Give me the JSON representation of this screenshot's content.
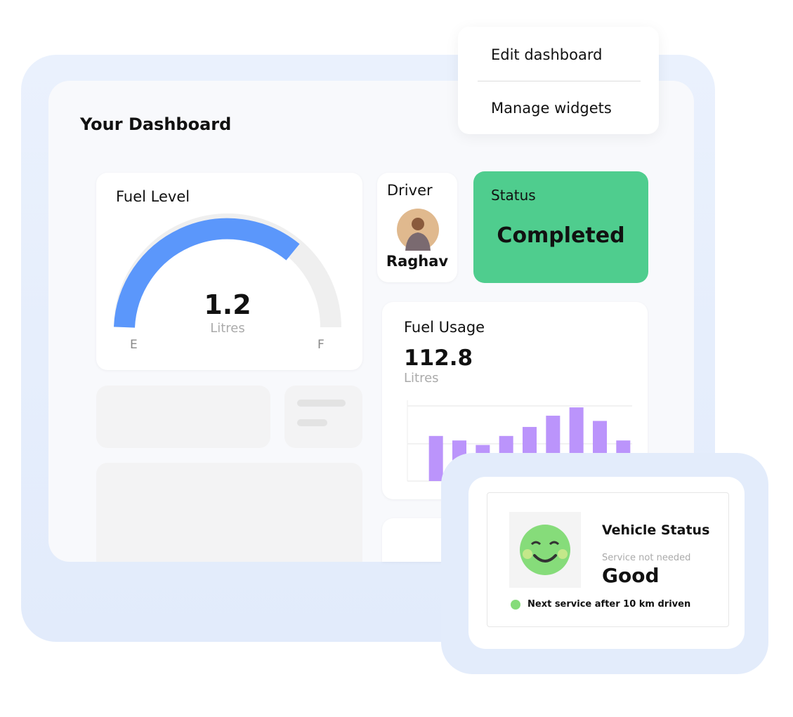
{
  "menu": {
    "items": [
      "Edit dashboard",
      "Manage widgets"
    ]
  },
  "header": {
    "title": "Your Dashboard"
  },
  "fuel_level": {
    "title": "Fuel Level",
    "value": "1.2",
    "unit": "Litres",
    "min_label": "E",
    "max_label": "F"
  },
  "driver": {
    "title": "Driver",
    "name": "Raghav"
  },
  "status": {
    "title": "Status",
    "value": "Completed"
  },
  "fuel_usage": {
    "title": "Fuel Usage",
    "value": "112.8",
    "unit": "Litres",
    "chart": {
      "type": "bar",
      "values": [
        60,
        54,
        48,
        60,
        72,
        87,
        98,
        80,
        54
      ],
      "ylim": [
        0,
        100
      ],
      "color": "#bb94fb"
    }
  },
  "vehicle_status": {
    "title": "Vehicle Status",
    "subtitle": "Service not needed",
    "value": "Good",
    "note": "Next service after 10 km driven"
  }
}
